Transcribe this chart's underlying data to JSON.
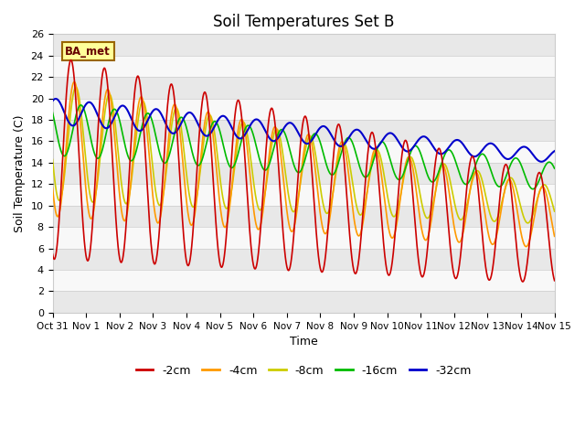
{
  "title": "Soil Temperatures Set B",
  "xlabel": "Time",
  "ylabel": "Soil Temperature (C)",
  "ylim": [
    0,
    26
  ],
  "yticks": [
    0,
    2,
    4,
    6,
    8,
    10,
    12,
    14,
    16,
    18,
    20,
    22,
    24,
    26
  ],
  "xtick_labels": [
    "Oct 31",
    "Nov 1",
    "Nov 2",
    "Nov 3",
    "Nov 4",
    "Nov 5",
    "Nov 6",
    "Nov 7",
    "Nov 8",
    "Nov 9",
    "Nov 10",
    "Nov 11",
    "Nov 12",
    "Nov 13",
    "Nov 14",
    "Nov 15"
  ],
  "legend_labels": [
    "-2cm",
    "-4cm",
    "-8cm",
    "-16cm",
    "-32cm"
  ],
  "legend_colors": [
    "#cc0000",
    "#ff9900",
    "#cccc00",
    "#00bb00",
    "#0000cc"
  ],
  "line_widths": [
    1.2,
    1.2,
    1.2,
    1.2,
    1.5
  ],
  "label_box_text": "BA_met",
  "label_box_color": "#ffff99",
  "label_box_edge": "#996600",
  "background_color": "#ffffff",
  "band_colors": [
    "#e8e8e8",
    "#f8f8f8"
  ],
  "title_fontsize": 12
}
